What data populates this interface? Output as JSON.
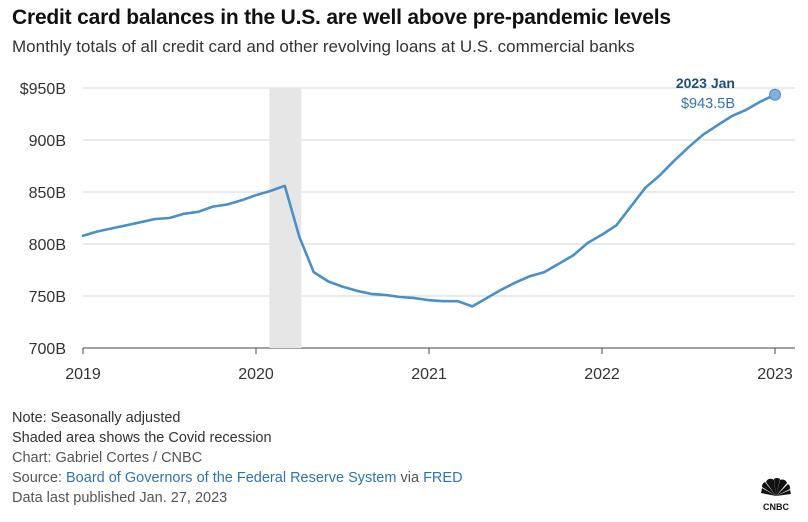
{
  "header": {
    "title": "Credit card balances in the U.S. are well above pre-pandemic levels",
    "subtitle": "Monthly totals of all credit card and other revolving loans at U.S. commercial banks"
  },
  "chart_data": {
    "type": "line",
    "title": "Credit card balances in the U.S. are well above pre-pandemic levels",
    "subtitle": "Monthly totals of all credit card and other revolving loans at U.S. commercial banks",
    "xlabel": "",
    "ylabel": "",
    "ylim": [
      700,
      950
    ],
    "y_ticks": [
      {
        "value": 700,
        "label": "700B"
      },
      {
        "value": 750,
        "label": "750B"
      },
      {
        "value": 800,
        "label": "800B"
      },
      {
        "value": 850,
        "label": "850B"
      },
      {
        "value": 900,
        "label": "900B"
      },
      {
        "value": 950,
        "label": "$950B"
      }
    ],
    "xlim": [
      "2019-01",
      "2023-01"
    ],
    "x_ticks": [
      "2019",
      "2020",
      "2021",
      "2022",
      "2023"
    ],
    "grid": true,
    "line_color": "#4a90c8",
    "shade_color": "#e6e6e6",
    "shaded_region": {
      "start": "2020-02",
      "end": "2020-04"
    },
    "series": [
      {
        "x": [
          "2019-01",
          "2019-02",
          "2019-03",
          "2019-04",
          "2019-05",
          "2019-06",
          "2019-07",
          "2019-08",
          "2019-09",
          "2019-10",
          "2019-11",
          "2019-12",
          "2020-01",
          "2020-02",
          "2020-03",
          "2020-04",
          "2020-05",
          "2020-06",
          "2020-07",
          "2020-08",
          "2020-09",
          "2020-10",
          "2020-11",
          "2020-12",
          "2021-01",
          "2021-02",
          "2021-03",
          "2021-04",
          "2021-05",
          "2021-06",
          "2021-07",
          "2021-08",
          "2021-09",
          "2021-10",
          "2021-11",
          "2021-12",
          "2022-01",
          "2022-02",
          "2022-03",
          "2022-04",
          "2022-05",
          "2022-06",
          "2022-07",
          "2022-08",
          "2022-09",
          "2022-10",
          "2022-11",
          "2022-12",
          "2023-01"
        ],
        "values": [
          808,
          812,
          815,
          818,
          821,
          824,
          825,
          829,
          831,
          836,
          838,
          842,
          847,
          851,
          856,
          807,
          773,
          764,
          759,
          755,
          752,
          751,
          749,
          748,
          746,
          745,
          745,
          740,
          748,
          756,
          763,
          769,
          773,
          781,
          789,
          801,
          809,
          818,
          836,
          854,
          866,
          880,
          893,
          905,
          914,
          923,
          929,
          937,
          943.5
        ]
      }
    ],
    "annotation": {
      "x": "2023-01",
      "y": 943.5,
      "label": "2023 Jan",
      "value_label": "$943.5B"
    }
  },
  "footer": {
    "note1": "Note: Seasonally adjusted",
    "note2": "Shaded area shows the Covid recession",
    "credit": "Chart: Gabriel Cortes / CNBC",
    "source_prefix": "Source:",
    "source_link": "Board of Governors of the Federal Reserve System",
    "source_via": "via",
    "source_link2": "FRED",
    "published": "Data last published Jan. 27, 2023"
  },
  "logo": {
    "text": "CNBC"
  }
}
